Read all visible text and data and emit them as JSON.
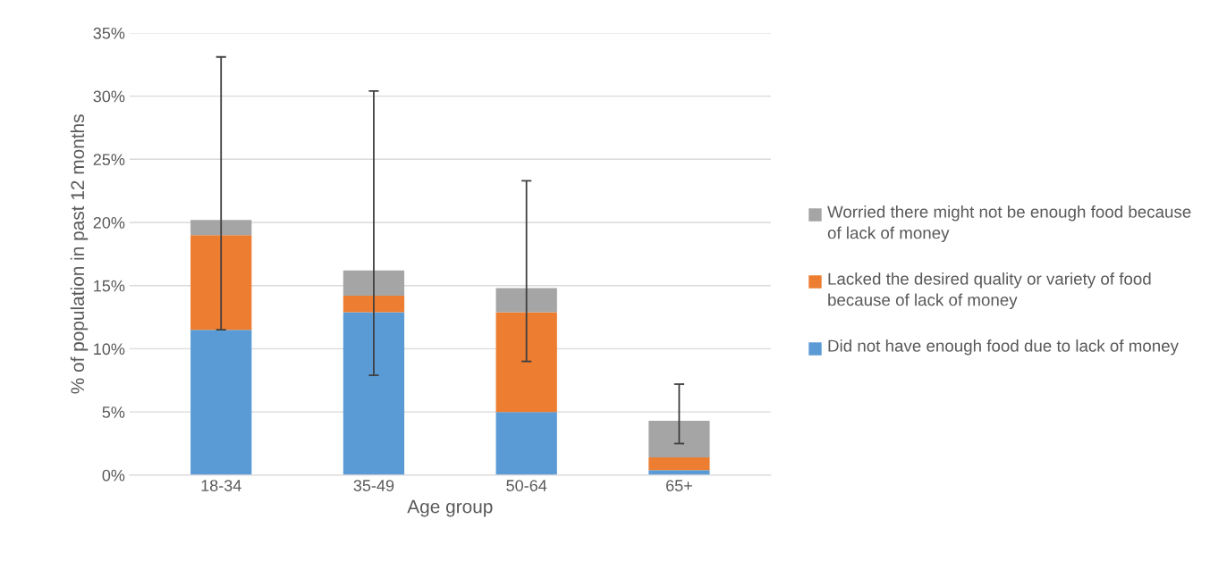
{
  "chart_data": {
    "type": "bar",
    "stacked": true,
    "xlabel": "Age group",
    "ylabel": "% of population in past 12 months",
    "categories": [
      "18-34",
      "35-49",
      "50-64",
      "65+"
    ],
    "series": [
      {
        "name": "Did not have enough food due to lack of money",
        "color": "#5b9bd5",
        "values": [
          11.5,
          12.9,
          5.0,
          0.4
        ]
      },
      {
        "name": "Lacked the desired quality or variety of food because of lack of money",
        "color": "#ed7d31",
        "values": [
          7.5,
          1.3,
          7.9,
          1.0
        ]
      },
      {
        "name": "Worried there might not be enough food because of lack of money",
        "color": "#a5a5a5",
        "values": [
          1.2,
          2.0,
          1.9,
          2.9
        ],
        "errors": [
          [
            11.5,
            33.1
          ],
          [
            7.9,
            30.4
          ],
          [
            9.0,
            23.3
          ],
          [
            2.5,
            7.2
          ]
        ]
      }
    ],
    "ylim": [
      0,
      35
    ],
    "yticks": [
      {
        "value": 0,
        "label": "0%"
      },
      {
        "value": 5,
        "label": "5%"
      },
      {
        "value": 10,
        "label": "10%"
      },
      {
        "value": 15,
        "label": "15%"
      },
      {
        "value": 20,
        "label": "20%"
      },
      {
        "value": 25,
        "label": "25%"
      },
      {
        "value": 30,
        "label": "30%"
      },
      {
        "value": 35,
        "label": "35%"
      }
    ],
    "grid": "y",
    "legend": "right"
  }
}
